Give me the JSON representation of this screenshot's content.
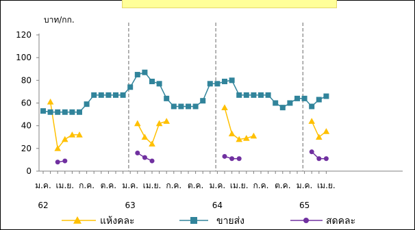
{
  "chart_data": {
    "type": "line",
    "ylabel": "บาท/กก.",
    "ylim": [
      0,
      120
    ],
    "yticks": [
      0,
      20,
      40,
      60,
      80,
      100,
      120
    ],
    "x_tick_labels": [
      "ม.ค.",
      "เม.ย.",
      "ก.ค.",
      "ต.ค.",
      "ม.ค.",
      "เม.ย.",
      "ก.ค.",
      "ต.ค.",
      "ม.ค.",
      "เม.ย.",
      "ก.ค.",
      "ต.ค.",
      "ม.ค.",
      "เม.ย."
    ],
    "year_labels": [
      "62",
      "63",
      "64",
      "65"
    ],
    "months_total": 40,
    "series": [
      {
        "name": "แห้งคละ",
        "color": "#ffc000",
        "marker": "triangle",
        "values": [
          null,
          61,
          20,
          28,
          32,
          32,
          null,
          null,
          null,
          null,
          null,
          null,
          null,
          42,
          30,
          24,
          42,
          44,
          null,
          null,
          null,
          null,
          null,
          null,
          null,
          56,
          33,
          28,
          29,
          31,
          null,
          null,
          null,
          null,
          null,
          null,
          null,
          44,
          30,
          35
        ]
      },
      {
        "name": "ขายส่ง",
        "color": "#31849b",
        "marker": "square",
        "values": [
          53,
          52,
          52,
          52,
          52,
          52,
          59,
          67,
          67,
          67,
          67,
          67,
          74,
          85,
          87,
          79,
          77,
          64,
          57,
          57,
          57,
          57,
          62,
          77,
          77,
          79,
          80,
          67,
          67,
          67,
          67,
          67,
          60,
          56,
          60,
          64,
          64,
          57,
          63,
          66
        ]
      },
      {
        "name": "สดคละ",
        "color": "#7030a0",
        "marker": "circle",
        "values": [
          null,
          null,
          8,
          9,
          null,
          null,
          null,
          null,
          null,
          null,
          null,
          null,
          null,
          16,
          12,
          9,
          null,
          null,
          null,
          null,
          null,
          null,
          null,
          null,
          null,
          13,
          11,
          11,
          null,
          null,
          null,
          null,
          null,
          null,
          null,
          null,
          null,
          17,
          11,
          11
        ]
      }
    ],
    "grid": false,
    "legend": "bottom"
  }
}
